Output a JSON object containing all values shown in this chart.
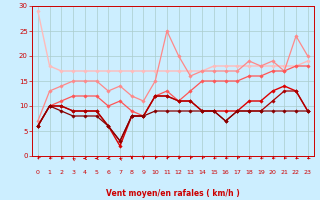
{
  "xlabel": "Vent moyen/en rafales ( km/h )",
  "xlim": [
    -0.5,
    23.5
  ],
  "ylim": [
    0,
    30
  ],
  "xticks": [
    0,
    1,
    2,
    3,
    4,
    5,
    6,
    7,
    8,
    9,
    10,
    11,
    12,
    13,
    14,
    15,
    16,
    17,
    18,
    19,
    20,
    21,
    22,
    23
  ],
  "yticks": [
    0,
    5,
    10,
    15,
    20,
    25,
    30
  ],
  "bg_color": "#cceeff",
  "grid_color": "#aacccc",
  "series": [
    {
      "x": [
        0,
        1,
        2,
        3,
        4,
        5,
        6,
        7,
        8,
        9,
        10,
        11,
        12,
        13,
        14,
        15,
        16,
        17,
        18,
        19,
        20,
        21,
        22,
        23
      ],
      "y": [
        29,
        18,
        17,
        17,
        17,
        17,
        17,
        17,
        17,
        17,
        17,
        17,
        17,
        17,
        17,
        18,
        18,
        18,
        18,
        18,
        18,
        18,
        18,
        19
      ],
      "color": "#ffbbbb",
      "lw": 1.0,
      "marker": "D",
      "ms": 1.8
    },
    {
      "x": [
        0,
        1,
        2,
        3,
        4,
        5,
        6,
        7,
        8,
        9,
        10,
        11,
        12,
        13,
        14,
        15,
        16,
        17,
        18,
        19,
        20,
        21,
        22,
        23
      ],
      "y": [
        7,
        13,
        14,
        15,
        15,
        15,
        13,
        14,
        12,
        11,
        15,
        25,
        20,
        16,
        17,
        17,
        17,
        17,
        19,
        18,
        19,
        17,
        24,
        20
      ],
      "color": "#ff8888",
      "lw": 0.9,
      "marker": "D",
      "ms": 1.8
    },
    {
      "x": [
        0,
        1,
        2,
        3,
        4,
        5,
        6,
        7,
        8,
        9,
        10,
        11,
        12,
        13,
        14,
        15,
        16,
        17,
        18,
        19,
        20,
        21,
        22,
        23
      ],
      "y": [
        6,
        10,
        11,
        12,
        12,
        12,
        10,
        11,
        9,
        8,
        12,
        13,
        11,
        13,
        15,
        15,
        15,
        15,
        16,
        16,
        17,
        17,
        18,
        18
      ],
      "color": "#ff5555",
      "lw": 0.9,
      "marker": "D",
      "ms": 1.8
    },
    {
      "x": [
        0,
        1,
        2,
        3,
        4,
        5,
        6,
        7,
        8,
        9,
        10,
        11,
        12,
        13,
        14,
        15,
        16,
        17,
        18,
        19,
        20,
        21,
        22,
        23
      ],
      "y": [
        6,
        10,
        10,
        9,
        9,
        9,
        6,
        2,
        8,
        8,
        12,
        12,
        11,
        11,
        9,
        9,
        9,
        9,
        11,
        11,
        13,
        14,
        13,
        9
      ],
      "color": "#dd0000",
      "lw": 1.0,
      "marker": "D",
      "ms": 1.8
    },
    {
      "x": [
        0,
        1,
        2,
        3,
        4,
        5,
        6,
        7,
        8,
        9,
        10,
        11,
        12,
        13,
        14,
        15,
        16,
        17,
        18,
        19,
        20,
        21,
        22,
        23
      ],
      "y": [
        6,
        10,
        10,
        9,
        9,
        9,
        6,
        3,
        8,
        8,
        12,
        12,
        11,
        11,
        9,
        9,
        7,
        9,
        9,
        9,
        11,
        13,
        13,
        9
      ],
      "color": "#aa0000",
      "lw": 0.9,
      "marker": "D",
      "ms": 1.8
    },
    {
      "x": [
        0,
        1,
        2,
        3,
        4,
        5,
        6,
        7,
        8,
        9,
        10,
        11,
        12,
        13,
        14,
        15,
        16,
        17,
        18,
        19,
        20,
        21,
        22,
        23
      ],
      "y": [
        6,
        10,
        9,
        8,
        8,
        8,
        6,
        3,
        8,
        8,
        9,
        9,
        9,
        9,
        9,
        9,
        7,
        9,
        9,
        9,
        9,
        9,
        9,
        9
      ],
      "color": "#880000",
      "lw": 0.9,
      "marker": "D",
      "ms": 1.8
    }
  ],
  "wind_dirs": [
    200,
    210,
    210,
    330,
    260,
    260,
    260,
    310,
    180,
    180,
    195,
    195,
    195,
    195,
    200,
    210,
    210,
    200,
    210,
    210,
    210,
    210,
    220,
    220
  ]
}
